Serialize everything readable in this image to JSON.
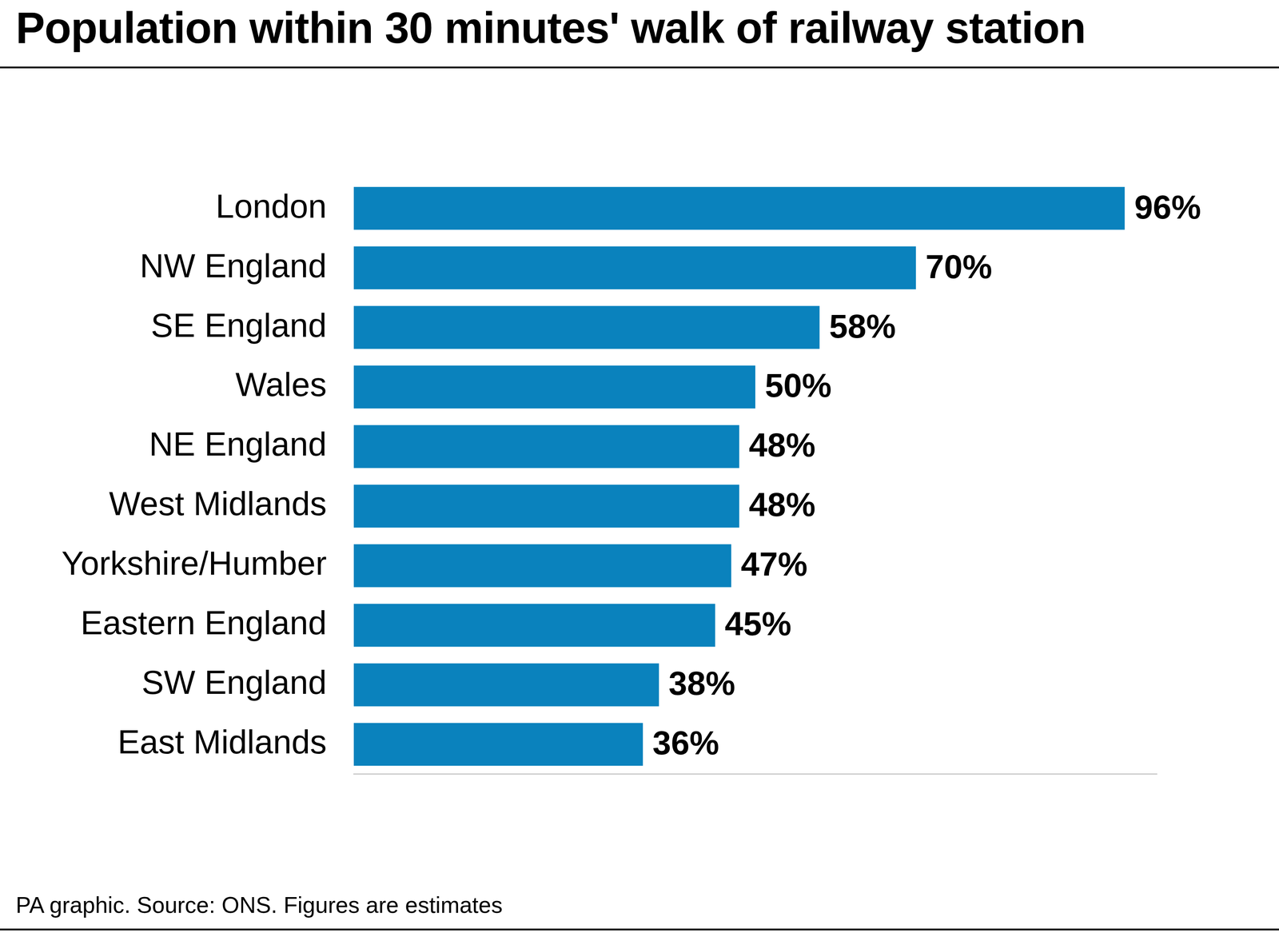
{
  "chart_data": {
    "type": "bar",
    "orientation": "horizontal",
    "title": "Population within 30 minutes' walk of railway station",
    "note": "PA graphic. Source: ONS. Figures are estimates",
    "categories": [
      "London",
      "NW England",
      "SE England",
      "Wales",
      "NE England",
      "West Midlands",
      "Yorkshire/Humber",
      "Eastern England",
      "SW England",
      "East Midlands"
    ],
    "values": [
      96,
      70,
      58,
      50,
      48,
      48,
      47,
      45,
      38,
      36
    ],
    "value_labels": [
      "96%",
      "70%",
      "58%",
      "50%",
      "48%",
      "48%",
      "47%",
      "45%",
      "38%",
      "36%"
    ],
    "color": "#0a82bd",
    "xlim": [
      0,
      100
    ],
    "grid": false,
    "tick_labels": "y",
    "data_labels": true
  }
}
